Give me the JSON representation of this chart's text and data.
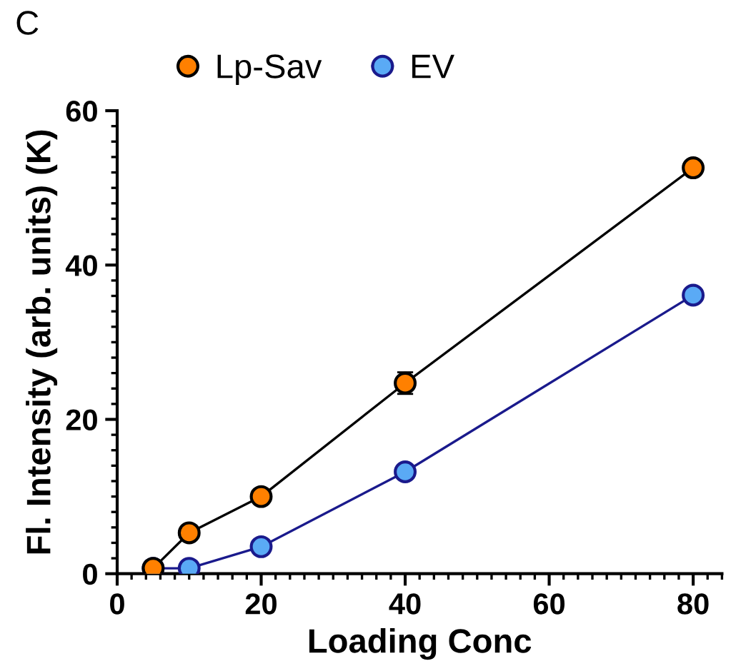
{
  "chart_data": {
    "type": "line",
    "title": "C",
    "xlabel": "Loading Conc",
    "ylabel": "Fl. Intensity (arb. units) (K)",
    "x": [
      5,
      10,
      20,
      40,
      80
    ],
    "series": [
      {
        "name": "Lp-Sav",
        "color": "#ff8000",
        "values": [
          0.7,
          5.3,
          10.0,
          24.7,
          52.6
        ],
        "errors": [
          null,
          null,
          null,
          1.4,
          null
        ]
      },
      {
        "name": "EV",
        "color": "#5aaaf5",
        "values": [
          0.7,
          0.7,
          3.5,
          13.2,
          36.1
        ]
      }
    ],
    "xlim": [
      0,
      84
    ],
    "xticks": [
      0,
      20,
      40,
      60,
      80
    ],
    "ylim": [
      0,
      60
    ],
    "yticks": [
      0,
      20,
      40,
      60
    ],
    "marker": "circle",
    "line_style": "solid",
    "legend": "top",
    "grid": false
  }
}
